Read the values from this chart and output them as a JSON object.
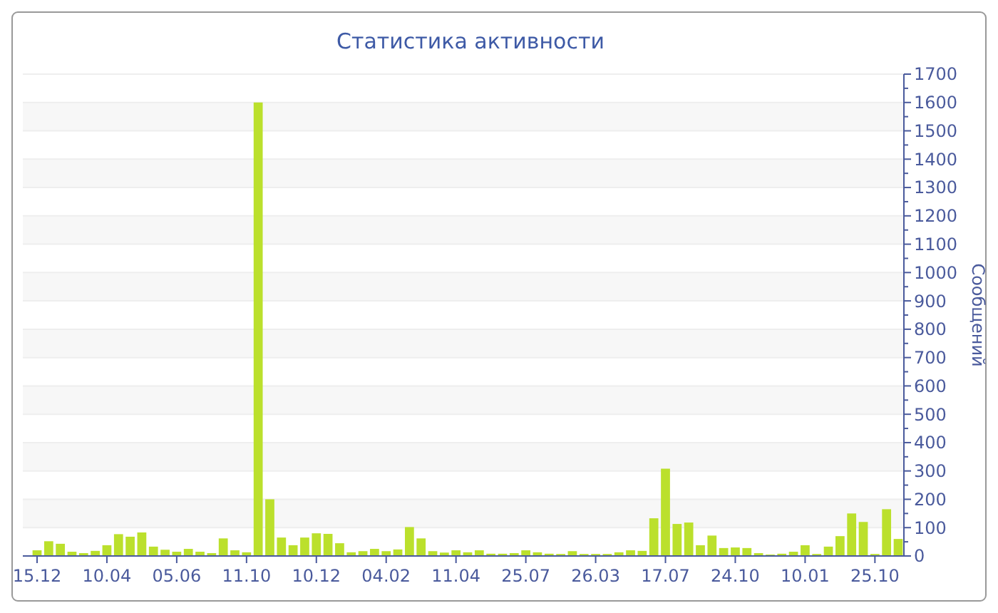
{
  "chart_data": {
    "type": "bar",
    "title": "Статистика активности",
    "ylabel": "Сообщений",
    "categories": [
      "15.12",
      null,
      null,
      null,
      null,
      null,
      "10.04",
      null,
      null,
      null,
      null,
      null,
      "05.06",
      null,
      null,
      null,
      null,
      null,
      "11.10",
      null,
      null,
      null,
      null,
      null,
      "10.12",
      null,
      null,
      null,
      null,
      null,
      "04.02",
      null,
      null,
      null,
      null,
      null,
      "11.04",
      null,
      null,
      null,
      null,
      null,
      "25.07",
      null,
      null,
      null,
      null,
      null,
      "26.03",
      null,
      null,
      null,
      null,
      null,
      "17.07",
      null,
      null,
      null,
      null,
      null,
      "24.10",
      null,
      null,
      null,
      null,
      null,
      "10.01",
      null,
      null,
      null,
      null,
      null,
      "25.10",
      null,
      null
    ],
    "values": [
      20,
      52,
      43,
      15,
      10,
      18,
      38,
      77,
      68,
      83,
      33,
      22,
      15,
      25,
      15,
      10,
      62,
      20,
      13,
      1600,
      200,
      65,
      38,
      65,
      80,
      78,
      45,
      13,
      17,
      25,
      17,
      23,
      102,
      62,
      17,
      12,
      20,
      13,
      20,
      8,
      8,
      10,
      20,
      13,
      8,
      7,
      17,
      7,
      7,
      7,
      13,
      20,
      18,
      133,
      308,
      113,
      118,
      38,
      72,
      28,
      30,
      28,
      10,
      5,
      8,
      15,
      38,
      7,
      33,
      70,
      150,
      120,
      7,
      165,
      60
    ],
    "color": "#bbe02c",
    "ylim": [
      0,
      1700
    ],
    "yticks": [
      0,
      100,
      200,
      300,
      400,
      500,
      600,
      700,
      800,
      900,
      1000,
      1100,
      1200,
      1300,
      1400,
      1500,
      1600,
      1700
    ],
    "grid": "y"
  }
}
